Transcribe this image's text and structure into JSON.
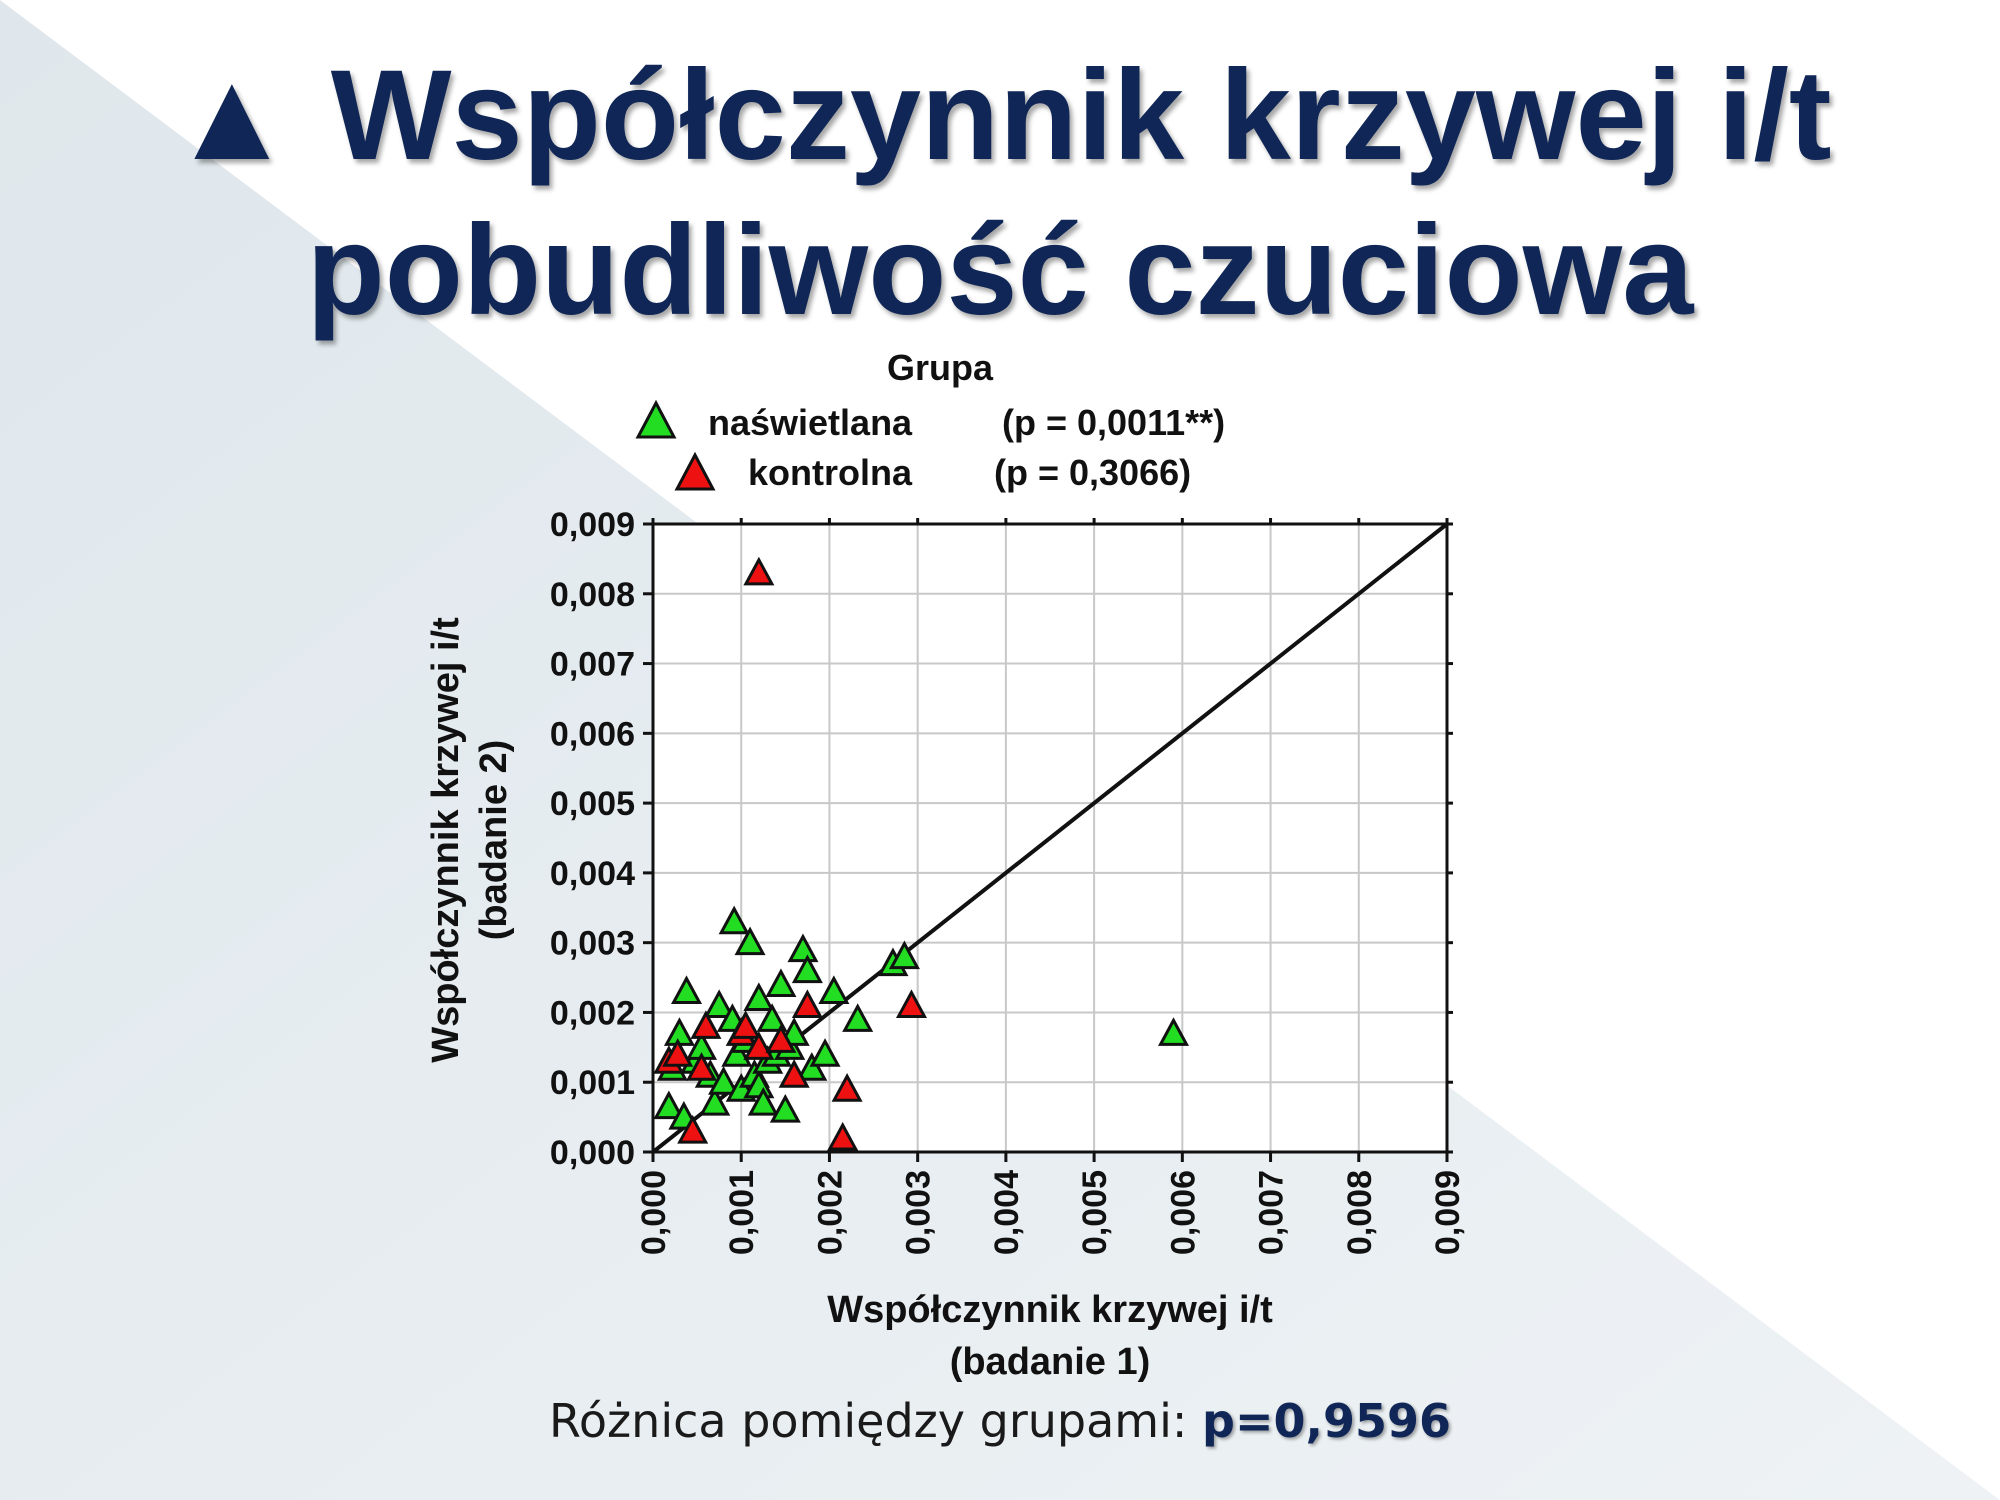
{
  "slide": {
    "title_line1": "▲ Współczynnik krzywej i/t",
    "title_line2": "pobudliwość czuciowa",
    "footer_label": "Różnica pomiędzy grupami: ",
    "footer_value": "p=0,9596",
    "title_color": "#0f2656"
  },
  "chart_data": {
    "type": "scatter",
    "legend_title": "Grupa",
    "legend_placement": "top",
    "grid": true,
    "xlabel_lines": [
      "Współczynnik krzywej i/t",
      "(badanie 1)"
    ],
    "ylabel_lines": [
      "Współczynnik krzywej i/t",
      "(badanie 2)"
    ],
    "xlim": [
      0,
      0.009
    ],
    "ylim": [
      0,
      0.009
    ],
    "x_ticks": [
      0,
      0.001,
      0.002,
      0.003,
      0.004,
      0.005,
      0.006,
      0.007,
      0.008,
      0.009
    ],
    "y_ticks": [
      0,
      0.001,
      0.002,
      0.003,
      0.004,
      0.005,
      0.006,
      0.007,
      0.008,
      0.009
    ],
    "x_tick_labels": [
      "0,000",
      "0,001",
      "0,002",
      "0,003",
      "0,004",
      "0,005",
      "0,006",
      "0,007",
      "0,008",
      "0,009"
    ],
    "y_tick_labels": [
      "0,000",
      "0,001",
      "0,002",
      "0,003",
      "0,004",
      "0,005",
      "0,006",
      "0,007",
      "0,008",
      "0,009"
    ],
    "reference_line": {
      "from": [
        0,
        0
      ],
      "to": [
        0.009,
        0.009
      ]
    },
    "series": [
      {
        "name": "naświetlana",
        "p_text": "(p = 0,0011**)",
        "marker": "triangle",
        "color": "#22dd22",
        "points": [
          [
            0.00018,
            0.00065
          ],
          [
            0.00022,
            0.0012
          ],
          [
            0.0003,
            0.0017
          ],
          [
            0.00035,
            0.0005
          ],
          [
            0.00038,
            0.0023
          ],
          [
            0.00048,
            0.0013
          ],
          [
            0.00055,
            0.0015
          ],
          [
            0.00065,
            0.0011
          ],
          [
            0.0007,
            0.0007
          ],
          [
            0.00075,
            0.0021
          ],
          [
            0.0008,
            0.001
          ],
          [
            0.0009,
            0.0019
          ],
          [
            0.00092,
            0.0033
          ],
          [
            0.00095,
            0.0014
          ],
          [
            0.001,
            0.0009
          ],
          [
            0.00105,
            0.0016
          ],
          [
            0.0011,
            0.003
          ],
          [
            0.00115,
            0.0011
          ],
          [
            0.0012,
            0.00095
          ],
          [
            0.0012,
            0.0022
          ],
          [
            0.00125,
            0.0007
          ],
          [
            0.0013,
            0.0013
          ],
          [
            0.00135,
            0.0019
          ],
          [
            0.0014,
            0.0014
          ],
          [
            0.00145,
            0.0024
          ],
          [
            0.0015,
            0.0006
          ],
          [
            0.00155,
            0.0015
          ],
          [
            0.0016,
            0.0017
          ],
          [
            0.0017,
            0.0029
          ],
          [
            0.00175,
            0.0026
          ],
          [
            0.0018,
            0.0012
          ],
          [
            0.00195,
            0.0014
          ],
          [
            0.00205,
            0.0023
          ],
          [
            0.00232,
            0.0019
          ],
          [
            0.00272,
            0.0027
          ],
          [
            0.00285,
            0.0028
          ],
          [
            0.0059,
            0.0017
          ]
        ]
      },
      {
        "name": "kontrolna",
        "p_text": "(p = 0,3066)",
        "marker": "triangle",
        "color": "#ee1111",
        "points": [
          [
            0.00018,
            0.0013
          ],
          [
            0.00028,
            0.0014
          ],
          [
            0.00045,
            0.0003
          ],
          [
            0.00055,
            0.0012
          ],
          [
            0.0006,
            0.0018
          ],
          [
            0.001,
            0.0017
          ],
          [
            0.00105,
            0.0018
          ],
          [
            0.0012,
            0.0015
          ],
          [
            0.0012,
            0.0083
          ],
          [
            0.00145,
            0.0016
          ],
          [
            0.0016,
            0.0011
          ],
          [
            0.00175,
            0.0021
          ],
          [
            0.00215,
            0.0002
          ],
          [
            0.0022,
            0.0009
          ],
          [
            0.00293,
            0.0021
          ]
        ]
      }
    ]
  }
}
